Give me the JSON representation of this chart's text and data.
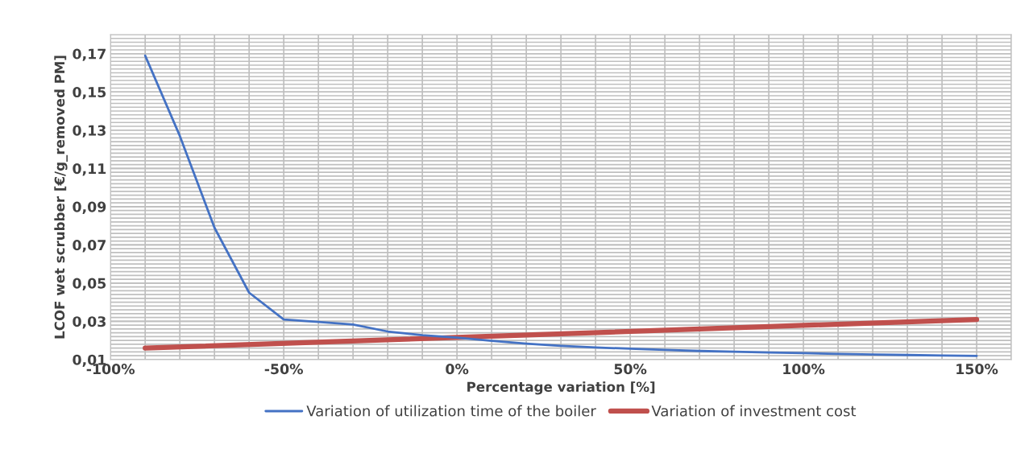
{
  "chart_data": {
    "type": "line",
    "xlabel": "Percentage variation [%]",
    "ylabel": "LCOF wet scrubber [€/g_removed PM]",
    "series": [
      {
        "name": "Variation of utilization time of the boiler",
        "color": "#4472c4",
        "x": [
          -90,
          -80,
          -70,
          -60,
          -50,
          -40,
          -30,
          -20,
          -10,
          0,
          10,
          20,
          30,
          40,
          50,
          60,
          70,
          80,
          90,
          100,
          110,
          120,
          130,
          140,
          150
        ],
        "values": [
          0.169,
          0.127,
          0.079,
          0.045,
          0.031,
          0.0297,
          0.0283,
          0.0247,
          0.0228,
          0.0215,
          0.0198,
          0.0183,
          0.0172,
          0.0163,
          0.0157,
          0.0151,
          0.0145,
          0.0141,
          0.0137,
          0.0134,
          0.013,
          0.0127,
          0.0124,
          0.0121,
          0.0119
        ]
      },
      {
        "name": "Variation of investment cost",
        "color": "#c0504d",
        "x": [
          -90,
          150
        ],
        "values": [
          0.016,
          0.031
        ]
      }
    ],
    "xlim": [
      -100,
      160
    ],
    "xticks": [
      {
        "value": -100,
        "label": "-100%"
      },
      {
        "value": -90,
        "label": null
      },
      {
        "value": -80,
        "label": null
      },
      {
        "value": -70,
        "label": null
      },
      {
        "value": -60,
        "label": null
      },
      {
        "value": -50,
        "label": "-50%"
      },
      {
        "value": -40,
        "label": null
      },
      {
        "value": -30,
        "label": null
      },
      {
        "value": -20,
        "label": null
      },
      {
        "value": -10,
        "label": null
      },
      {
        "value": 0,
        "label": "0%"
      },
      {
        "value": 10,
        "label": null
      },
      {
        "value": 20,
        "label": null
      },
      {
        "value": 30,
        "label": null
      },
      {
        "value": 40,
        "label": null
      },
      {
        "value": 50,
        "label": "50%"
      },
      {
        "value": 60,
        "label": null
      },
      {
        "value": 70,
        "label": null
      },
      {
        "value": 80,
        "label": null
      },
      {
        "value": 90,
        "label": null
      },
      {
        "value": 100,
        "label": "100%"
      },
      {
        "value": 110,
        "label": null
      },
      {
        "value": 120,
        "label": null
      },
      {
        "value": 130,
        "label": null
      },
      {
        "value": 140,
        "label": null
      },
      {
        "value": 150,
        "label": "150%"
      },
      {
        "value": 160,
        "label": null
      }
    ],
    "ylim": [
      0.01,
      0.18
    ],
    "yticks": [
      {
        "value": 0.01,
        "label": "0,01"
      },
      {
        "value": 0.03,
        "label": "0,03"
      },
      {
        "value": 0.05,
        "label": "0,05"
      },
      {
        "value": 0.07,
        "label": "0,07"
      },
      {
        "value": 0.09,
        "label": "0,09"
      },
      {
        "value": 0.11,
        "label": "0,11"
      },
      {
        "value": 0.13,
        "label": "0,13"
      },
      {
        "value": 0.15,
        "label": "0,15"
      },
      {
        "value": 0.17,
        "label": "0,17"
      }
    ],
    "grid": true,
    "legend": "bottom",
    "marker": "none",
    "line_style": "solid"
  }
}
